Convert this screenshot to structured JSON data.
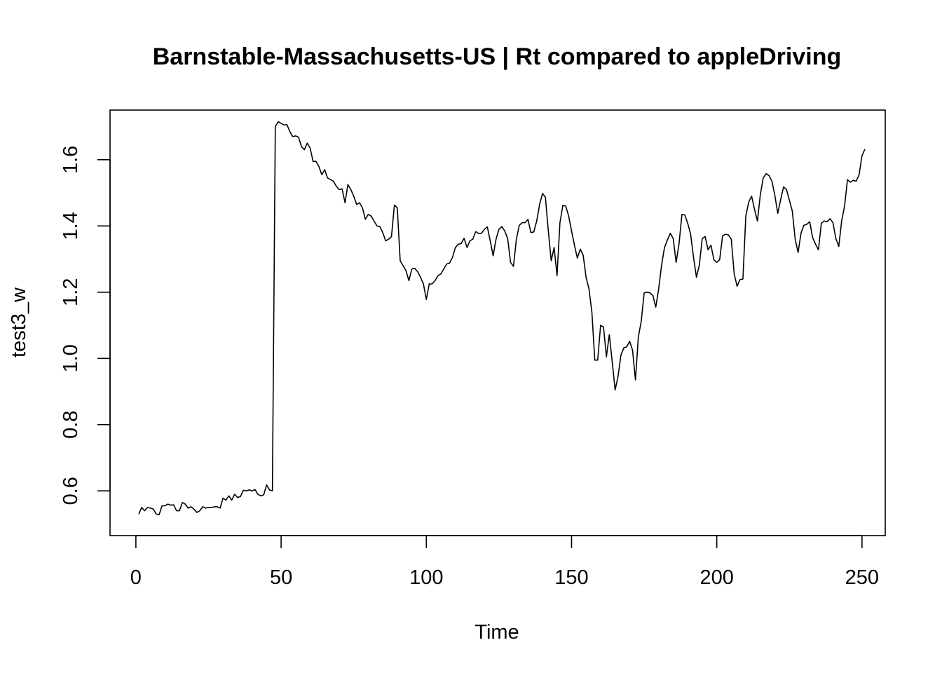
{
  "chart_data": {
    "type": "line",
    "title": "Barnstable-Massachusetts-US | Rt compared to appleDriving",
    "xlabel": "Time",
    "ylabel": "test3_w",
    "xlim": [
      -8.9,
      258
    ],
    "ylim": [
      0.465,
      1.75
    ],
    "xticks": [
      0,
      50,
      100,
      150,
      200,
      250
    ],
    "yticks": [
      0.6,
      0.8,
      1.0,
      1.2,
      1.4,
      1.6
    ],
    "xtick_labels": [
      "0",
      "50",
      "100",
      "150",
      "200",
      "250"
    ],
    "ytick_labels": [
      "0.6",
      "0.8",
      "1.0",
      "1.2",
      "1.4",
      "1.6"
    ],
    "grid": false,
    "legend": "none",
    "color": "#000000",
    "series": [
      {
        "x_start": 1,
        "values": [
          0.53,
          0.55,
          0.54,
          0.55,
          0.548,
          0.545,
          0.53,
          0.528,
          0.555,
          0.555,
          0.56,
          0.557,
          0.558,
          0.54,
          0.54,
          0.565,
          0.56,
          0.548,
          0.552,
          0.545,
          0.535,
          0.54,
          0.552,
          0.548,
          0.55,
          0.55,
          0.552,
          0.552,
          0.548,
          0.578,
          0.572,
          0.585,
          0.572,
          0.59,
          0.58,
          0.583,
          0.602,
          0.6,
          0.603,
          0.6,
          0.604,
          0.59,
          0.585,
          0.588,
          0.618,
          0.603,
          0.6,
          1.7,
          1.715,
          1.71,
          1.705,
          1.706,
          1.685,
          1.67,
          1.672,
          1.668,
          1.64,
          1.63,
          1.65,
          1.635,
          1.595,
          1.595,
          1.58,
          1.555,
          1.57,
          1.545,
          1.54,
          1.535,
          1.52,
          1.51,
          1.512,
          1.47,
          1.525,
          1.51,
          1.49,
          1.465,
          1.47,
          1.455,
          1.42,
          1.435,
          1.43,
          1.415,
          1.4,
          1.398,
          1.38,
          1.355,
          1.36,
          1.368,
          1.463,
          1.455,
          1.295,
          1.28,
          1.265,
          1.235,
          1.27,
          1.272,
          1.262,
          1.245,
          1.225,
          1.178,
          1.225,
          1.225,
          1.235,
          1.25,
          1.255,
          1.27,
          1.285,
          1.288,
          1.305,
          1.335,
          1.345,
          1.347,
          1.363,
          1.335,
          1.355,
          1.36,
          1.383,
          1.377,
          1.378,
          1.39,
          1.397,
          1.355,
          1.31,
          1.36,
          1.39,
          1.398,
          1.385,
          1.362,
          1.29,
          1.278,
          1.36,
          1.402,
          1.41,
          1.41,
          1.42,
          1.38,
          1.382,
          1.415,
          1.465,
          1.498,
          1.487,
          1.385,
          1.295,
          1.335,
          1.25,
          1.41,
          1.462,
          1.46,
          1.43,
          1.385,
          1.342,
          1.303,
          1.33,
          1.312,
          1.245,
          1.21,
          1.14,
          0.995,
          0.995,
          1.1,
          1.095,
          1.005,
          1.072,
          0.99,
          0.905,
          0.945,
          1.01,
          1.032,
          1.035,
          1.052,
          1.025,
          0.935,
          1.065,
          1.112,
          1.198,
          1.2,
          1.198,
          1.19,
          1.155,
          1.21,
          1.282,
          1.335,
          1.358,
          1.378,
          1.362,
          1.29,
          1.345,
          1.435,
          1.433,
          1.408,
          1.375,
          1.305,
          1.245,
          1.282,
          1.362,
          1.368,
          1.328,
          1.342,
          1.298,
          1.29,
          1.298,
          1.37,
          1.375,
          1.373,
          1.36,
          1.255,
          1.218,
          1.238,
          1.24,
          1.43,
          1.472,
          1.49,
          1.45,
          1.415,
          1.495,
          1.545,
          1.558,
          1.552,
          1.535,
          1.492,
          1.438,
          1.48,
          1.518,
          1.51,
          1.478,
          1.445,
          1.36,
          1.32,
          1.378,
          1.402,
          1.405,
          1.413,
          1.365,
          1.345,
          1.328,
          1.408,
          1.415,
          1.413,
          1.422,
          1.41,
          1.362,
          1.338,
          1.415,
          1.46,
          1.54,
          1.532,
          1.538,
          1.535,
          1.555,
          1.612,
          1.632
        ]
      }
    ]
  }
}
